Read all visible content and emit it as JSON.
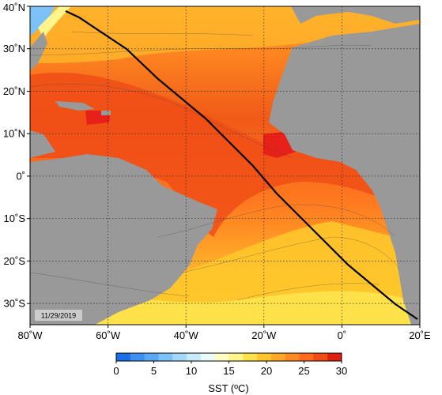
{
  "map": {
    "date_stamp": "11/29/2019",
    "lon_labels": [
      "80˚W",
      "60˚W",
      "40˚W",
      "20˚W",
      "0˚",
      "20˚E"
    ],
    "lat_labels": [
      "40˚N",
      "30˚N",
      "20˚N",
      "10˚N",
      "0˚",
      "10˚S",
      "20˚S",
      "30˚S"
    ],
    "lon_range": [
      -80,
      20
    ],
    "lat_range": [
      -35,
      40
    ],
    "land_color": "#999999",
    "track_color": "#000000"
  },
  "colorbar": {
    "title": "SST (ºC)",
    "ticks": [
      "0",
      "5",
      "10",
      "15",
      "20",
      "25",
      "30"
    ],
    "range": [
      0,
      30
    ],
    "colors": [
      "#1a6ee8",
      "#3f8ff0",
      "#5aa8f5",
      "#7cc2f8",
      "#a3d8f9",
      "#c9ebf7",
      "#eafbfa",
      "#fffcc4",
      "#fff58a",
      "#ffe24a",
      "#ffc62b",
      "#ffa726",
      "#ff8a22",
      "#ff6a1c",
      "#f24a14",
      "#e01e10"
    ]
  }
}
